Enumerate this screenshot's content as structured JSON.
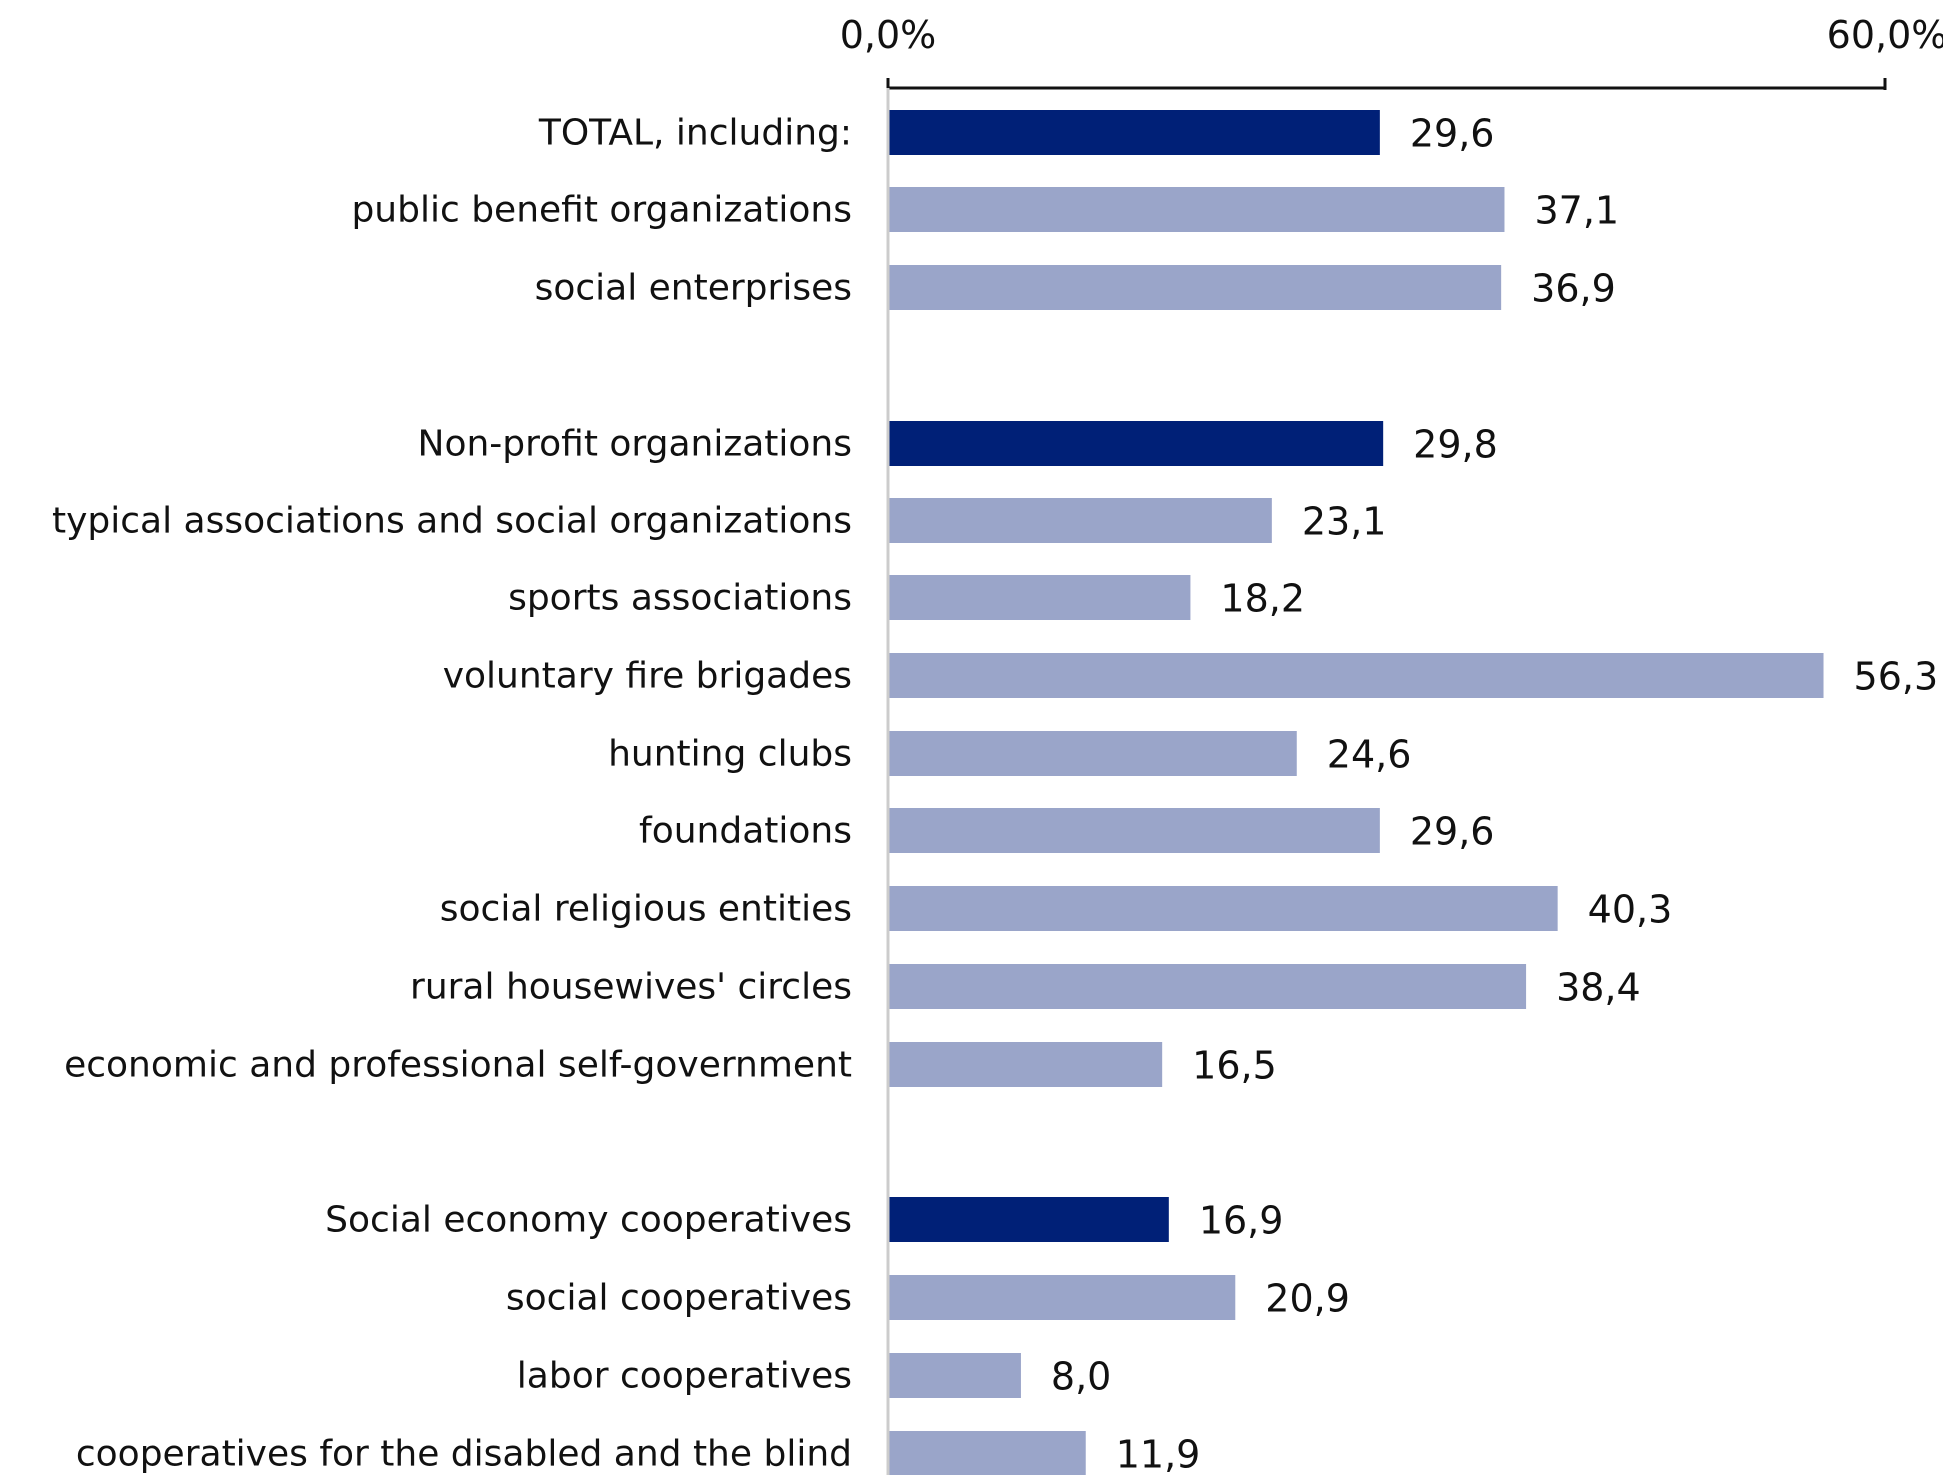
{
  "chart_data": {
    "type": "bar",
    "orientation": "horizontal",
    "xlim": [
      0,
      60
    ],
    "x_tick_labels": [
      "0,0%",
      "60,0%"
    ],
    "grid": false,
    "legend": "none",
    "colors": {
      "group_total": "#002077",
      "item": "#9aa5c9",
      "axis": "#111111",
      "baseline": "#cccccc"
    },
    "categories": [
      "TOTAL, including:",
      "public benefit organizations",
      "social enterprises",
      "Non-profit organizations",
      "typical associations and social organizations",
      "sports associations",
      "voluntary fire brigades",
      "hunting clubs",
      "foundations",
      "social religious entities",
      "rural housewives' circles",
      "economic and professional self-government",
      "Social economy cooperatives",
      "social cooperatives",
      "labor cooperatives",
      "cooperatives for the disabled and the blind"
    ],
    "values": [
      29.6,
      37.1,
      36.9,
      29.8,
      23.1,
      18.2,
      56.3,
      24.6,
      29.6,
      40.3,
      38.4,
      16.5,
      16.9,
      20.9,
      8.0,
      11.9
    ],
    "value_labels": [
      "29,6",
      "37,1",
      "36,9",
      "29,8",
      "23,1",
      "18,2",
      "56,3",
      "24,6",
      "29,6",
      "40,3",
      "38,4",
      "16,5",
      "16,9",
      "20,9",
      "8,0",
      "11,9"
    ],
    "emphasis": [
      "total",
      "item",
      "item",
      "total",
      "item",
      "item",
      "item",
      "item",
      "item",
      "item",
      "item",
      "item",
      "total",
      "item",
      "item",
      "item"
    ]
  }
}
